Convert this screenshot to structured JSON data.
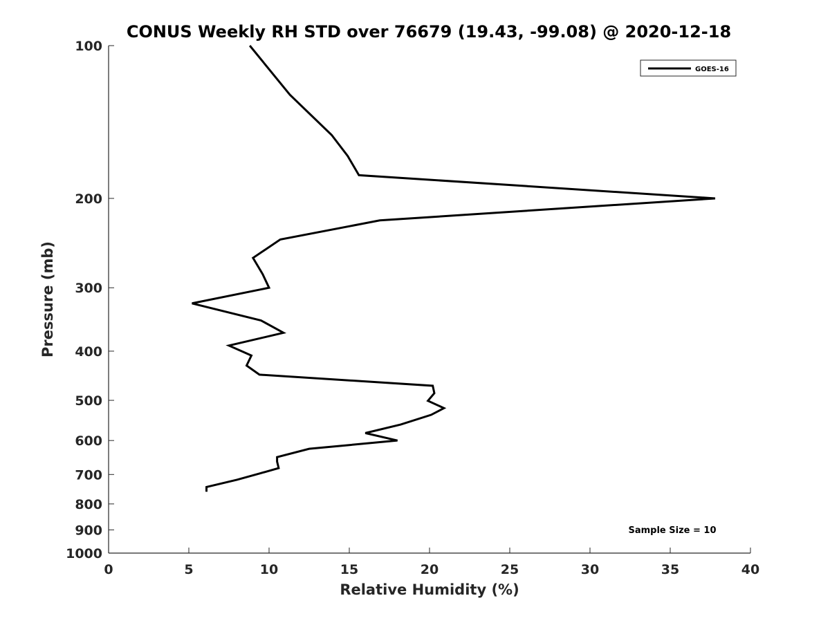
{
  "chart_data": {
    "type": "line",
    "title": "CONUS Weekly RH STD over 76679 (19.43, -99.08) @ 2020-12-18",
    "xlabel": "Relative Humidity (%)",
    "ylabel": "Pressure (mb)",
    "xlim": [
      0,
      40
    ],
    "ylim": [
      1000,
      100
    ],
    "yscale": "log",
    "xticks": [
      0,
      5,
      10,
      15,
      20,
      25,
      30,
      35,
      40
    ],
    "yticks": [
      100,
      200,
      300,
      400,
      500,
      600,
      700,
      800,
      900,
      1000
    ],
    "grid": false,
    "legend": {
      "placement": "top-right"
    },
    "annotation": "Sample Size = 10",
    "series": [
      {
        "name": "GOES-16",
        "color": "#000000",
        "x": [
          8.8,
          11.3,
          13.9,
          14.9,
          15.6,
          37.8,
          16.9,
          10.7,
          9.0,
          9.6,
          10.0,
          5.2,
          9.5,
          10.9,
          7.5,
          8.9,
          8.6,
          9.4,
          20.2,
          20.3,
          19.9,
          20.9,
          20.1,
          18.2,
          16.0,
          18.0,
          12.5,
          10.5,
          10.5,
          10.6,
          9.4,
          8.0,
          6.1,
          6.1
        ],
        "y": [
          100,
          125,
          150,
          165,
          180,
          200,
          221,
          241,
          262,
          282,
          300,
          322,
          348,
          368,
          390,
          408,
          427,
          445,
          468,
          484,
          501,
          518,
          534,
          558,
          580,
          600,
          623,
          647,
          660,
          680,
          697,
          717,
          741,
          757
        ]
      }
    ]
  }
}
